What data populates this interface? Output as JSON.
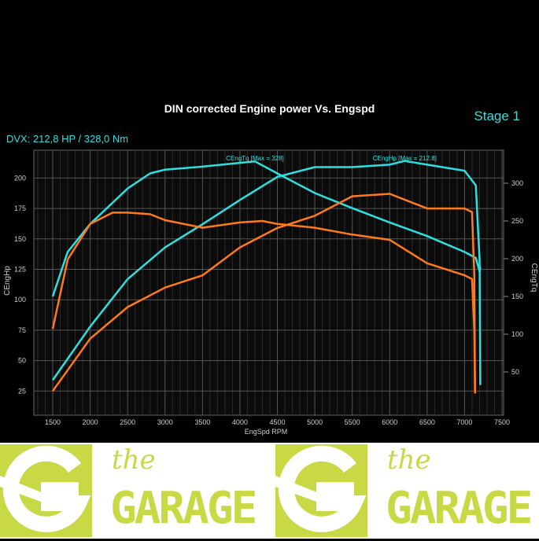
{
  "header": {
    "stage": "Stage 1",
    "dvx": "DVX:  212,8 HP / 328,0 Nm"
  },
  "logo": {
    "the": "the",
    "garage": "GARAGE"
  },
  "chart_data": {
    "type": "line",
    "title": "DIN corrected Engine power Vs. Engspd",
    "xlabel": "EngSpd RPM",
    "ylabel": "CEngHp",
    "y2label": "CEngTq",
    "xlim": [
      1250,
      7500
    ],
    "ylim": [
      0,
      220
    ],
    "y2lim": [
      0,
      330
    ],
    "xticks": [
      1500,
      2000,
      2500,
      3000,
      3500,
      4000,
      4500,
      5000,
      5500,
      6000,
      6500,
      7000,
      7500
    ],
    "yticks": [
      25,
      50,
      75,
      100,
      125,
      150,
      175,
      200
    ],
    "y2ticks": [
      50,
      100,
      150,
      200,
      250,
      300
    ],
    "grid": true,
    "colors": {
      "tuned": "#2de0e0",
      "stock": "#ff7a1a",
      "grid": "#555555"
    },
    "annotations": [
      {
        "text": "CEngTq [Max = 328]",
        "x": 4200,
        "axis": "y2"
      },
      {
        "text": "CEngHp [Max = 212.8]",
        "x": 6200,
        "axis": "y"
      }
    ],
    "series": [
      {
        "name": "CEngHp",
        "group": "tuned",
        "axis": "y",
        "x": [
          1500,
          2000,
          2500,
          3000,
          3500,
          4000,
          4500,
          5000,
          5500,
          6000,
          6200,
          6500,
          7000,
          7150,
          7200,
          7210
        ],
        "y": [
          34,
          78,
          117,
          143,
          162,
          182,
          201,
          209,
          209,
          211,
          214,
          211,
          206,
          194,
          133,
          30
        ]
      },
      {
        "name": "CEngTq",
        "group": "tuned",
        "axis": "y2",
        "x": [
          1500,
          1700,
          2000,
          2500,
          2800,
          3000,
          3500,
          4000,
          4200,
          4500,
          5000,
          5500,
          6000,
          6500,
          7000,
          7150,
          7200,
          7210
        ],
        "y": [
          150,
          209,
          246,
          293,
          313,
          318,
          322,
          327,
          329,
          313,
          287,
          267,
          248,
          230,
          209,
          201,
          183,
          189
        ]
      },
      {
        "group": "stock",
        "axis": "y",
        "x": [
          1500,
          2000,
          2500,
          3000,
          3500,
          4000,
          4500,
          5000,
          5500,
          6000,
          6500,
          7000,
          7100,
          7130,
          7140
        ],
        "y": [
          25,
          68,
          94,
          110,
          120,
          143,
          159,
          169,
          185,
          187,
          175,
          175,
          172,
          120,
          23
        ]
      },
      {
        "group": "stock",
        "axis": "y2",
        "x": [
          1500,
          1700,
          2000,
          2300,
          2500,
          2800,
          3000,
          3500,
          4000,
          4300,
          4500,
          5000,
          5500,
          6000,
          6500,
          7000,
          7100,
          7130,
          7140
        ],
        "y": [
          107,
          199,
          246,
          261,
          261,
          259,
          251,
          241,
          248,
          250,
          246,
          241,
          232,
          225,
          194,
          178,
          173,
          105,
          22
        ]
      }
    ]
  }
}
